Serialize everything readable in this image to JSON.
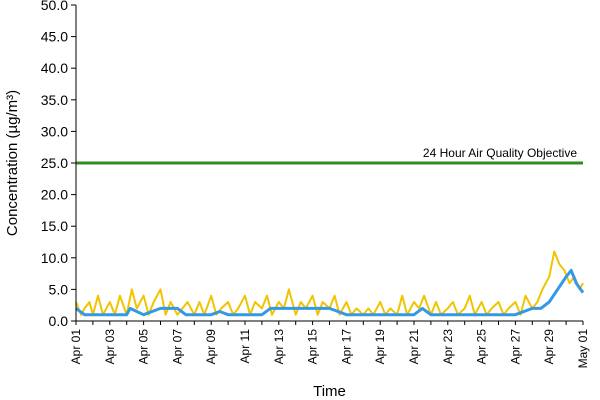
{
  "chart_data": {
    "type": "line",
    "xlabel": "Time",
    "ylabel": "Concentration (µg/m³)",
    "ylim": [
      0,
      50
    ],
    "yticks": [
      "0.0",
      "5.0",
      "10.0",
      "15.0",
      "20.0",
      "25.0",
      "30.0",
      "35.0",
      "40.0",
      "45.0",
      "50.0"
    ],
    "xlim": [
      "Apr 01",
      "May 01"
    ],
    "xticks": [
      "Apr 01",
      "Apr 03",
      "Apr 05",
      "Apr 07",
      "Apr 09",
      "Apr 11",
      "Apr 13",
      "Apr 15",
      "Apr 17",
      "Apr 19",
      "Apr 21",
      "Apr 23",
      "Apr 25",
      "Apr 27",
      "Apr 29",
      "May 01"
    ],
    "grid": false,
    "reference_line": {
      "label": "24 Hour Air Quality Objective",
      "value": 25.0,
      "color": "#2e8b1e"
    },
    "series": [
      {
        "color": "#f2c300",
        "x_days": [
          0,
          0.3,
          0.5,
          0.8,
          1.0,
          1.3,
          1.6,
          2.0,
          2.3,
          2.6,
          3.0,
          3.3,
          3.6,
          4.0,
          4.3,
          4.6,
          5.0,
          5.3,
          5.6,
          6.0,
          6.3,
          6.6,
          7.0,
          7.3,
          7.6,
          8.0,
          8.3,
          8.6,
          9.0,
          9.3,
          9.6,
          10.0,
          10.3,
          10.6,
          11.0,
          11.3,
          11.6,
          12.0,
          12.3,
          12.6,
          13.0,
          13.3,
          13.6,
          14.0,
          14.3,
          14.6,
          15.0,
          15.3,
          15.6,
          16.0,
          16.3,
          16.6,
          17.0,
          17.3,
          17.6,
          18.0,
          18.3,
          18.6,
          19.0,
          19.3,
          19.6,
          20.0,
          20.3,
          20.6,
          21.0,
          21.3,
          21.6,
          22.0,
          22.3,
          22.6,
          23.0,
          23.3,
          23.6,
          24.0,
          24.3,
          24.6,
          25.0,
          25.3,
          25.6,
          26.0,
          26.3,
          26.6,
          27.0,
          27.3,
          27.6,
          28.0,
          28.3,
          28.6,
          28.9,
          29.2,
          29.5,
          29.8,
          30.0
        ],
        "values": [
          3,
          1,
          2,
          3,
          1,
          4,
          1,
          3,
          1,
          4,
          1,
          5,
          2,
          4,
          1,
          3,
          5,
          1,
          3,
          1,
          2,
          3,
          1,
          3,
          1,
          4,
          1,
          2,
          3,
          1,
          2,
          4,
          1,
          3,
          2,
          4,
          1,
          3,
          2,
          5,
          1,
          3,
          2,
          4,
          1,
          3,
          2,
          4,
          1,
          3,
          1,
          2,
          1,
          2,
          1,
          3,
          1,
          2,
          1,
          4,
          1,
          3,
          2,
          4,
          1,
          3,
          1,
          2,
          3,
          1,
          2,
          4,
          1,
          3,
          1,
          2,
          3,
          1,
          2,
          3,
          1,
          4,
          2,
          3,
          5,
          7,
          11,
          9,
          8,
          6,
          7,
          5,
          6
        ]
      },
      {
        "color": "#3399e6",
        "x_days": [
          0,
          0.5,
          1.0,
          2.0,
          3.0,
          3.2,
          4.0,
          5.0,
          6.0,
          6.5,
          7.0,
          8.0,
          8.5,
          9.0,
          10.0,
          11.0,
          11.5,
          12.0,
          13.0,
          14.0,
          15.0,
          15.5,
          16.0,
          17.0,
          18.0,
          19.0,
          20.0,
          20.5,
          21.0,
          22.0,
          23.0,
          24.0,
          25.0,
          26.0,
          27.0,
          27.5,
          28.0,
          28.5,
          29.0,
          29.3,
          29.6,
          30.0
        ],
        "values": [
          2,
          1,
          1,
          1,
          1,
          2,
          1,
          2,
          2,
          1,
          1,
          1,
          1.5,
          1,
          1,
          1,
          2,
          2,
          2,
          2,
          2,
          1.5,
          1,
          1,
          1,
          1,
          1,
          2,
          1,
          1,
          1,
          1,
          1,
          1,
          2,
          2,
          3,
          5,
          7,
          8,
          6,
          4.5
        ]
      }
    ]
  }
}
